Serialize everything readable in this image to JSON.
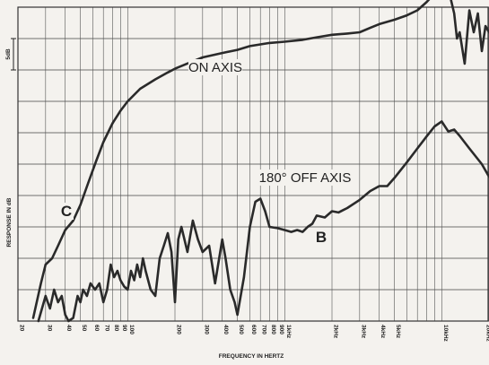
{
  "chart_data": {
    "type": "line",
    "title": "",
    "xlabel": "FREQUENCY IN HERTZ",
    "ylabel": "RESPONSE IN dB",
    "x_scale": "log",
    "xlim": [
      20,
      20000
    ],
    "ylim": [
      0,
      50
    ],
    "y_scale_mark": "5dB",
    "grid": true,
    "x_ticks": [
      {
        "value": 20,
        "label": "20"
      },
      {
        "value": 30,
        "label": "30"
      },
      {
        "value": 40,
        "label": "40"
      },
      {
        "value": 50,
        "label": "50"
      },
      {
        "value": 60,
        "label": "60"
      },
      {
        "value": 70,
        "label": "70"
      },
      {
        "value": 80,
        "label": "80"
      },
      {
        "value": 90,
        "label": "90"
      },
      {
        "value": 100,
        "label": "100"
      },
      {
        "value": 200,
        "label": "200"
      },
      {
        "value": 300,
        "label": "300"
      },
      {
        "value": 400,
        "label": "400"
      },
      {
        "value": 500,
        "label": "500"
      },
      {
        "value": 600,
        "label": "600"
      },
      {
        "value": 700,
        "label": "700"
      },
      {
        "value": 800,
        "label": "800"
      },
      {
        "value": 900,
        "label": "900"
      },
      {
        "value": 1000,
        "label": "1kHz"
      },
      {
        "value": 2000,
        "label": "2kHz"
      },
      {
        "value": 3000,
        "label": "3kHz"
      },
      {
        "value": 4000,
        "label": "4kHz"
      },
      {
        "value": 5000,
        "label": "5kHz"
      },
      {
        "value": 10000,
        "label": "10kHz"
      },
      {
        "value": 20000,
        "label": "20kHz"
      }
    ],
    "series": [
      {
        "name": "ON AXIS",
        "letter": "C",
        "points": [
          [
            25,
            0.5
          ],
          [
            28,
            6
          ],
          [
            30,
            9
          ],
          [
            33,
            10
          ],
          [
            36,
            12
          ],
          [
            40,
            14.5
          ],
          [
            45,
            16
          ],
          [
            50,
            18.5
          ],
          [
            56,
            22
          ],
          [
            63,
            25.5
          ],
          [
            70,
            28.5
          ],
          [
            80,
            31.5
          ],
          [
            90,
            33.5
          ],
          [
            100,
            35
          ],
          [
            120,
            37
          ],
          [
            150,
            38.5
          ],
          [
            180,
            39.6
          ],
          [
            200,
            40.2
          ],
          [
            250,
            41.2
          ],
          [
            300,
            42
          ],
          [
            400,
            42.7
          ],
          [
            500,
            43.2
          ],
          [
            600,
            43.8
          ],
          [
            800,
            44.3
          ],
          [
            1000,
            44.5
          ],
          [
            1300,
            44.8
          ],
          [
            1600,
            45.2
          ],
          [
            2000,
            45.6
          ],
          [
            2500,
            45.8
          ],
          [
            3000,
            46
          ],
          [
            3500,
            46.7
          ],
          [
            4000,
            47.3
          ],
          [
            5000,
            48
          ],
          [
            6000,
            48.7
          ],
          [
            7000,
            49.5
          ],
          [
            8000,
            50.8
          ],
          [
            9000,
            52.2
          ],
          [
            10000,
            51.5
          ],
          [
            11000,
            53
          ],
          [
            12000,
            49
          ],
          [
            12500,
            45
          ],
          [
            13000,
            46
          ],
          [
            14000,
            41
          ],
          [
            15000,
            49.5
          ],
          [
            16000,
            46
          ],
          [
            17000,
            49
          ],
          [
            18000,
            43
          ],
          [
            19000,
            47
          ],
          [
            20000,
            46
          ]
        ]
      },
      {
        "name": "180° OFF AXIS",
        "letter": "B",
        "points": [
          [
            27,
            0
          ],
          [
            30,
            4
          ],
          [
            32,
            2
          ],
          [
            34,
            5
          ],
          [
            36,
            3
          ],
          [
            38,
            4
          ],
          [
            40,
            1
          ],
          [
            42,
            0
          ],
          [
            45,
            0.5
          ],
          [
            48,
            4
          ],
          [
            50,
            3
          ],
          [
            52,
            5
          ],
          [
            55,
            4
          ],
          [
            58,
            6
          ],
          [
            62,
            5
          ],
          [
            66,
            6
          ],
          [
            70,
            3
          ],
          [
            74,
            5
          ],
          [
            78,
            9
          ],
          [
            82,
            7
          ],
          [
            86,
            8
          ],
          [
            90,
            6.5
          ],
          [
            95,
            5.5
          ],
          [
            100,
            5
          ],
          [
            105,
            8
          ],
          [
            110,
            6.5
          ],
          [
            115,
            9
          ],
          [
            120,
            7
          ],
          [
            125,
            10
          ],
          [
            130,
            8
          ],
          [
            140,
            5
          ],
          [
            150,
            4
          ],
          [
            160,
            10
          ],
          [
            170,
            12
          ],
          [
            180,
            14
          ],
          [
            190,
            11
          ],
          [
            200,
            3
          ],
          [
            210,
            13
          ],
          [
            220,
            15
          ],
          [
            240,
            11
          ],
          [
            260,
            16
          ],
          [
            280,
            13
          ],
          [
            300,
            11
          ],
          [
            330,
            12
          ],
          [
            360,
            6
          ],
          [
            400,
            13
          ],
          [
            420,
            10
          ],
          [
            450,
            5
          ],
          [
            480,
            3
          ],
          [
            500,
            1
          ],
          [
            550,
            7
          ],
          [
            600,
            15
          ],
          [
            650,
            19
          ],
          [
            700,
            19.5
          ],
          [
            750,
            17.5
          ],
          [
            800,
            15
          ],
          [
            900,
            14.8
          ],
          [
            1000,
            14.5
          ],
          [
            1100,
            14.2
          ],
          [
            1200,
            14.5
          ],
          [
            1300,
            14.2
          ],
          [
            1400,
            15
          ],
          [
            1500,
            15.5
          ],
          [
            1600,
            16.8
          ],
          [
            1800,
            16.5
          ],
          [
            2000,
            17.5
          ],
          [
            2200,
            17.3
          ],
          [
            2500,
            18
          ],
          [
            3000,
            19.3
          ],
          [
            3500,
            20.7
          ],
          [
            4000,
            21.5
          ],
          [
            4500,
            21.5
          ],
          [
            5000,
            22.8
          ],
          [
            6000,
            25.3
          ],
          [
            7000,
            27.5
          ],
          [
            8000,
            29.4
          ],
          [
            9000,
            31
          ],
          [
            10000,
            31.8
          ],
          [
            11000,
            30.2
          ],
          [
            12000,
            30.5
          ],
          [
            13000,
            29.5
          ],
          [
            15000,
            27.5
          ],
          [
            18000,
            25
          ],
          [
            20000,
            23
          ]
        ]
      }
    ]
  }
}
